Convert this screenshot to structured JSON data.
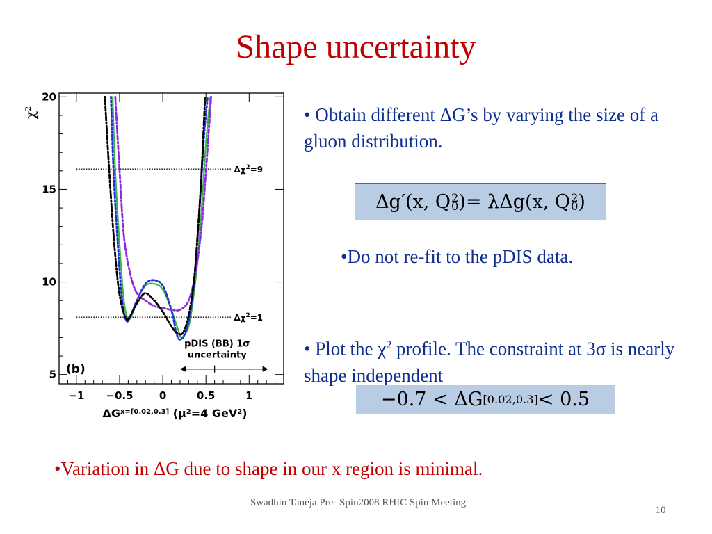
{
  "slide": {
    "title": "Shape uncertainty",
    "bullet1": "• Obtain different ΔG’s by varying the size of a gluon distribution.",
    "bullet2": "•Do not re-fit to the pDIS data.",
    "bullet3_pre": "•  Plot the χ",
    "bullet3_sup": "2",
    "bullet3_post": " profile. The constraint at 3σ is nearly shape independent",
    "red_note": "•Variation in ΔG due to shape in our x region is minimal.",
    "footer": "Swadhin Taneja  Pre- Spin2008  RHIC Spin Meeting",
    "page_number": "10"
  },
  "equations": {
    "eq1": {
      "lhs_delta_g": "Δg′(x, Q",
      "lhs_sub": "0",
      "lhs_sup": "2",
      "lhs_close": ")",
      "rhs": " = λΔg(x, Q",
      "rhs_sub": "0",
      "rhs_sup": "2",
      "rhs_close": ")"
    },
    "eq2": {
      "left": "−0.7 < ΔG",
      "sup": "[0.02,0.3]",
      "right": " < 0.5"
    }
  },
  "chart_data": {
    "type": "line",
    "panel_label": "(b)",
    "ylabel": "χ",
    "ylabel_sup": "2",
    "xlabel_main": "ΔG",
    "xlabel_sup": "x=[0.02,0.3]",
    "xlabel_scale": "(μ",
    "xlabel_scale_sup": "2",
    "xlabel_scale_post": "=4 GeV",
    "xlabel_scale_sup2": "2",
    "xlabel_scale_close": ")",
    "xlim": [
      -1.2,
      1.4
    ],
    "ylim": [
      4.5,
      20.2
    ],
    "x_ticks": [
      "−1",
      "−0.5",
      "0",
      "0.5",
      "1"
    ],
    "x_tick_values": [
      -1,
      -0.5,
      0,
      0.5,
      1
    ],
    "y_ticks": [
      "5",
      "10",
      "15",
      "20"
    ],
    "y_tick_values": [
      5,
      10,
      15,
      20
    ],
    "reference_lines": [
      {
        "label": "Δχ",
        "sup": "2",
        "post": "=9",
        "y": 16.1,
        "x_range": [
          -1.0,
          0.8
        ]
      },
      {
        "label": "Δχ",
        "sup": "2",
        "post": "=1",
        "y": 8.1,
        "x_range": [
          -1.0,
          0.8
        ]
      }
    ],
    "pdis_band": {
      "label_line1": "pDIS (BB) 1σ",
      "label_line2": "uncertainty",
      "x_range": [
        0.2,
        1.22
      ],
      "y": 5.3,
      "center_x": 0.6
    },
    "series": [
      {
        "style": "solid",
        "color": "#3cb44b",
        "points": [
          [
            -0.58,
            20
          ],
          [
            -0.55,
            16
          ],
          [
            -0.5,
            12
          ],
          [
            -0.45,
            9
          ],
          [
            -0.4,
            8.0
          ],
          [
            -0.35,
            8.3
          ],
          [
            -0.3,
            9
          ],
          [
            -0.2,
            9.8
          ],
          [
            -0.1,
            9.9
          ],
          [
            0,
            9.6
          ],
          [
            0.1,
            8.5
          ],
          [
            0.18,
            7.4
          ],
          [
            0.22,
            7.0
          ],
          [
            0.3,
            7.6
          ],
          [
            0.35,
            9
          ],
          [
            0.4,
            11
          ],
          [
            0.45,
            14
          ],
          [
            0.5,
            17.5
          ],
          [
            0.55,
            20
          ]
        ]
      },
      {
        "style": "dotted",
        "color": "#1f2fd0",
        "points": [
          [
            -0.6,
            20
          ],
          [
            -0.57,
            16
          ],
          [
            -0.52,
            12
          ],
          [
            -0.47,
            9
          ],
          [
            -0.42,
            7.9
          ],
          [
            -0.37,
            8.2
          ],
          [
            -0.3,
            9
          ],
          [
            -0.2,
            9.9
          ],
          [
            -0.1,
            10.1
          ],
          [
            0,
            9.8
          ],
          [
            0.1,
            8.5
          ],
          [
            0.16,
            7.2
          ],
          [
            0.21,
            6.9
          ],
          [
            0.28,
            7.5
          ],
          [
            0.34,
            9
          ],
          [
            0.39,
            11.5
          ],
          [
            0.44,
            15
          ],
          [
            0.48,
            18
          ],
          [
            0.52,
            20
          ]
        ]
      },
      {
        "style": "dashdot",
        "color": "#8a2be2",
        "points": [
          [
            -0.55,
            20
          ],
          [
            -0.5,
            16
          ],
          [
            -0.45,
            12.5
          ],
          [
            -0.38,
            10.5
          ],
          [
            -0.3,
            9.4
          ],
          [
            -0.2,
            9.0
          ],
          [
            -0.1,
            8.7
          ],
          [
            0,
            8.6
          ],
          [
            0.1,
            8.5
          ],
          [
            0.2,
            8.5
          ],
          [
            0.3,
            9.0
          ],
          [
            0.38,
            10.5
          ],
          [
            0.45,
            13
          ],
          [
            0.5,
            16
          ],
          [
            0.56,
            20
          ]
        ]
      },
      {
        "style": "dashdot",
        "color": "#000000",
        "points": [
          [
            -0.67,
            20
          ],
          [
            -0.62,
            16
          ],
          [
            -0.56,
            12
          ],
          [
            -0.5,
            9.3
          ],
          [
            -0.42,
            8.0
          ],
          [
            -0.35,
            8.4
          ],
          [
            -0.28,
            9.0
          ],
          [
            -0.2,
            9.4
          ],
          [
            -0.1,
            9.0
          ],
          [
            0,
            8.4
          ],
          [
            0.1,
            7.6
          ],
          [
            0.18,
            7.2
          ],
          [
            0.24,
            7.3
          ],
          [
            0.3,
            8.2
          ],
          [
            0.36,
            10
          ],
          [
            0.41,
            13
          ],
          [
            0.45,
            16
          ],
          [
            0.49,
            20
          ]
        ]
      }
    ]
  }
}
